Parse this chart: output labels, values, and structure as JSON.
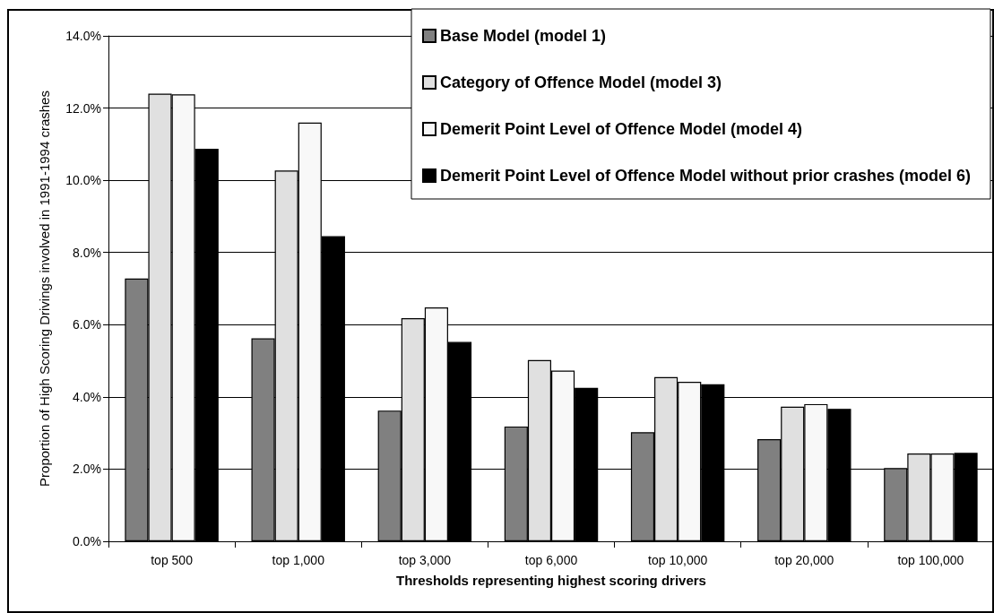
{
  "chart_data": {
    "type": "bar",
    "xlabel": "Thresholds representing highest scoring drivers",
    "ylabel": "Proportion of High Scoring Drivings involved in 1991-1994 crashes",
    "categories": [
      "top 500",
      "top 1,000",
      "top 3,000",
      "top 6,000",
      "top 10,000",
      "top 20,000",
      "top 100,000"
    ],
    "series": [
      {
        "name": "Base Model (model 1)",
        "color": "#808080",
        "values": [
          7.28,
          5.62,
          3.62,
          3.18,
          3.02,
          2.83,
          2.03
        ]
      },
      {
        "name": "Category of Offence Model (model 3)",
        "color": "#e0e0e0",
        "values": [
          12.4,
          10.27,
          6.18,
          5.02,
          4.55,
          3.73,
          2.43
        ]
      },
      {
        "name": "Demerit Point Level of Offence Model (model 4)",
        "color": "#f8f8f8",
        "values": [
          12.38,
          11.6,
          6.48,
          4.73,
          4.42,
          3.8,
          2.43
        ]
      },
      {
        "name": "Demerit Point Level of Offence Model without prior crashes (model 6)",
        "color": "#000000",
        "values": [
          10.87,
          8.45,
          5.52,
          4.25,
          4.35,
          3.67,
          2.45
        ]
      }
    ],
    "ylim": [
      0,
      14
    ],
    "yticks": [
      {
        "value": 0,
        "label": "0.0%"
      },
      {
        "value": 2,
        "label": "2.0%"
      },
      {
        "value": 4,
        "label": "4.0%"
      },
      {
        "value": 6,
        "label": "6.0%"
      },
      {
        "value": 8,
        "label": "8.0%"
      },
      {
        "value": 10,
        "label": "10.0%"
      },
      {
        "value": 12,
        "label": "12.0%"
      },
      {
        "value": 14,
        "label": "14.0%"
      }
    ],
    "grid": "y",
    "legend": "top right"
  }
}
